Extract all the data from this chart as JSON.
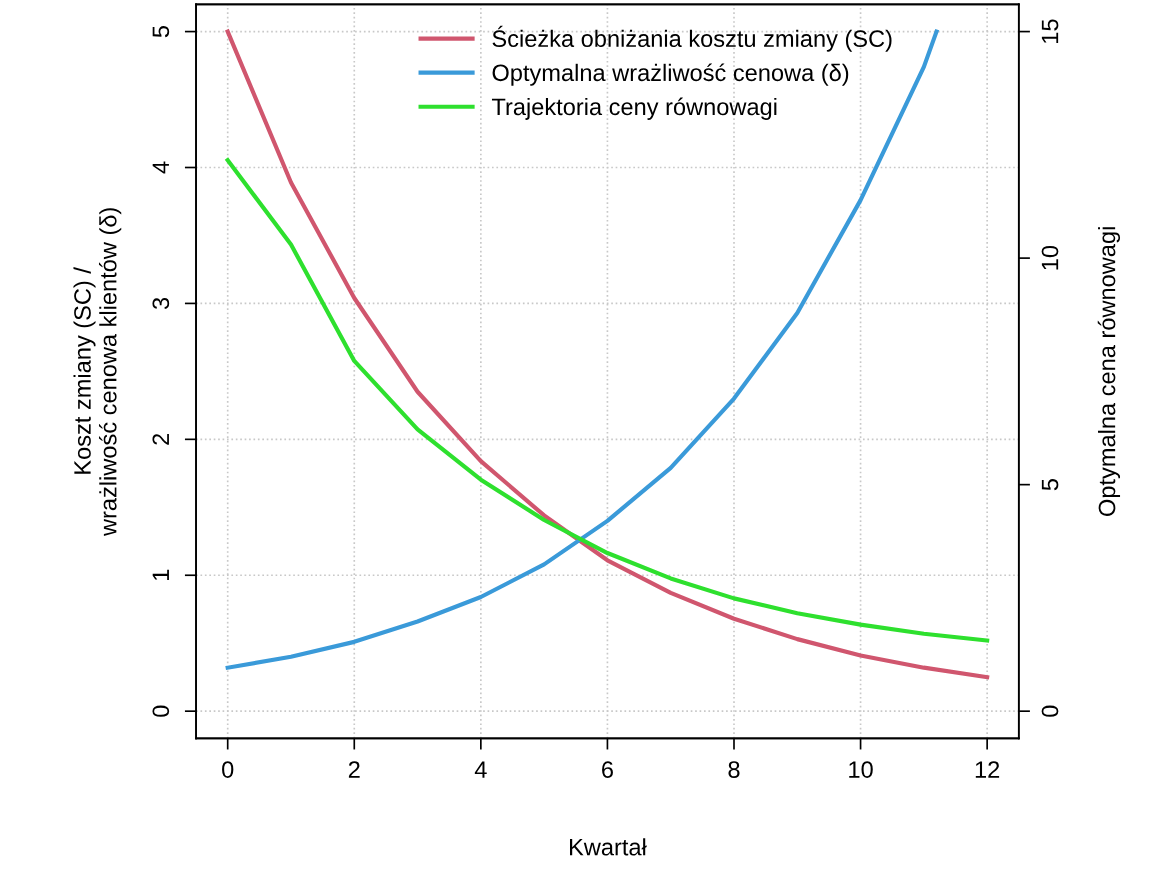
{
  "chart_data": {
    "type": "line",
    "xlabel": "Kwartał",
    "ylabel": "Koszt zmiany (SC) /\nwrażliwość cenowa klientów (δ)",
    "y2label": "Optymalna cena równowagi",
    "x": [
      0,
      1,
      2,
      3,
      4,
      5,
      6,
      7,
      8,
      9,
      10,
      11,
      12
    ],
    "series": [
      {
        "name": "Ścieżka obniżania kosztu zmiany (SC)",
        "color": "#d0566e",
        "values": [
          5.0,
          3.89,
          3.04,
          2.35,
          1.84,
          1.44,
          1.11,
          0.87,
          0.68,
          0.53,
          0.41,
          0.32,
          0.25
        ]
      },
      {
        "name": "Optymalna wrażliwość cenowa (δ)",
        "color": "#3a9ad9",
        "x": [
          0,
          1,
          2,
          3,
          4,
          5,
          6,
          7,
          8,
          9,
          10,
          11,
          11.2
        ],
        "values": [
          0.32,
          0.4,
          0.51,
          0.66,
          0.84,
          1.08,
          1.4,
          1.79,
          2.3,
          2.93,
          3.76,
          4.74,
          5.0
        ]
      },
      {
        "name": "Trajektoria ceny równowagi",
        "color": "#2ee02e",
        "axis": "y2",
        "values": [
          12.16,
          10.3,
          7.73,
          6.22,
          5.11,
          4.22,
          3.49,
          2.93,
          2.49,
          2.16,
          1.91,
          1.71,
          1.56
        ]
      }
    ],
    "xlim": [
      -0.5,
      12.5
    ],
    "xticks": [
      0,
      2,
      4,
      6,
      8,
      10,
      12
    ],
    "ylim": [
      -0.2,
      5.2
    ],
    "yticks": [
      0,
      1,
      2,
      3,
      4,
      5
    ],
    "y2lim": [
      -0.6,
      15.6
    ],
    "y2ticks": [
      0,
      5,
      10,
      15
    ],
    "grid": true,
    "legend": "top",
    "marker": "none",
    "line_style": "solid"
  }
}
